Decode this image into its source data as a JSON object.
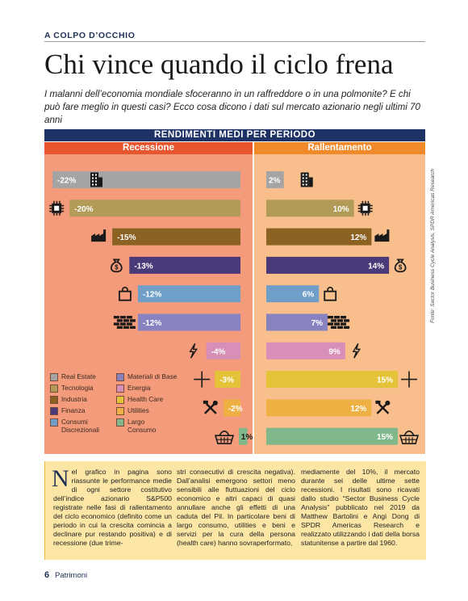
{
  "header": {
    "kicker": "A COLPO D’OCCHIO",
    "title": "Chi vince quando il ciclo frena",
    "subtitle": "I malanni dell’economia mondiale sfoceranno in un raffreddore o in una polmonite? E chi può fare meglio in questi casi? Ecco cosa dicono i dati sul mercato azionario negli ultimi 70 anni"
  },
  "chart_data": {
    "type": "bar",
    "title": "RENDIMENTI MEDI PER PERIODO",
    "panels": [
      "Recessione",
      "Rallentamento"
    ],
    "categories": [
      "Real Estate",
      "Tecnologia",
      "Industria",
      "Finanza",
      "Consumi Discrezionali",
      "Materiali di Base",
      "Energia",
      "Health Care",
      "Utilities",
      "Largo Consumo"
    ],
    "series": [
      {
        "name": "Recessione",
        "values": [
          -22,
          -20,
          -15,
          -13,
          -12,
          -12,
          -4,
          -3,
          -2,
          1
        ]
      },
      {
        "name": "Rallentamento",
        "values": [
          2,
          10,
          12,
          14,
          6,
          7,
          9,
          15,
          12,
          15
        ]
      }
    ],
    "value_labels": {
      "Recessione": [
        "-22%",
        "-20%",
        "-15%",
        "-13%",
        "-12%",
        "-12%",
        "-4%",
        "-3%",
        "-2%",
        "1%"
      ],
      "Rallentamento": [
        "2%",
        "10%",
        "12%",
        "14%",
        "6%",
        "7%",
        "9%",
        "15%",
        "12%",
        "15%"
      ]
    },
    "colors": [
      "#a4a4a4",
      "#b29a57",
      "#8c6222",
      "#4b3a79",
      "#6f9ec9",
      "#8883c0",
      "#d78fb7",
      "#e4c338",
      "#efb043",
      "#80b88c"
    ],
    "icons": [
      "building-icon",
      "cpu-chip-icon",
      "factory-icon",
      "money-bag-icon",
      "shopping-bag-icon",
      "brick-wall-icon",
      "lightning-icon",
      "medical-cross-icon",
      "tools-icon",
      "shopping-basket-icon"
    ],
    "legend_placement": "bottom-left",
    "grid": false
  },
  "legend": {
    "left": [
      "Real Estate",
      "Tecnologia",
      "Industria",
      "Finanza",
      "Consumi Discrezionali"
    ],
    "right": [
      "Materiali di Base",
      "Energia",
      "Health Care",
      "Utilities",
      "Largo Consumo"
    ]
  },
  "source": "Fonte: Sector Business Cycle Analysis, SPDR Americas Research",
  "body": {
    "dropcap": "N",
    "col1": "el grafico in pagina sono riassunte le performance medie di ogni settore costitutivo dell’indice azionario S&P500 registrate nelle fasi di rallentamento del ciclo economico (definito come un periodo in cui la crescita comincia a declinare pur restando positiva) e di recessione (due trime-",
    "col2": "stri consecutivi di crescita negativa). Dall’analisi emergono settori meno sensibili alle fluttuazioni del ciclo economico e altri capaci di quasi annullare anche gli effetti di una caduta del Pil. In particolare beni di largo consumo, utilities e beni e servizi per la cura della persona (health care) hanno sovraperformato,",
    "col3": "mediamente del 10%, il mercato durante sei delle ultime sette recessioni. I risultati sono ricavati dallo studio “Sector Business Cycle Analysis” pubblicato nel 2019 da Matthew Bartolini e Angi Dong di SPDR Americas Research e realizzato utilizzando i dati della borsa statunitense a partire dal 1960."
  },
  "footer": {
    "page_number": "6",
    "magazine": "Patrimoni"
  }
}
